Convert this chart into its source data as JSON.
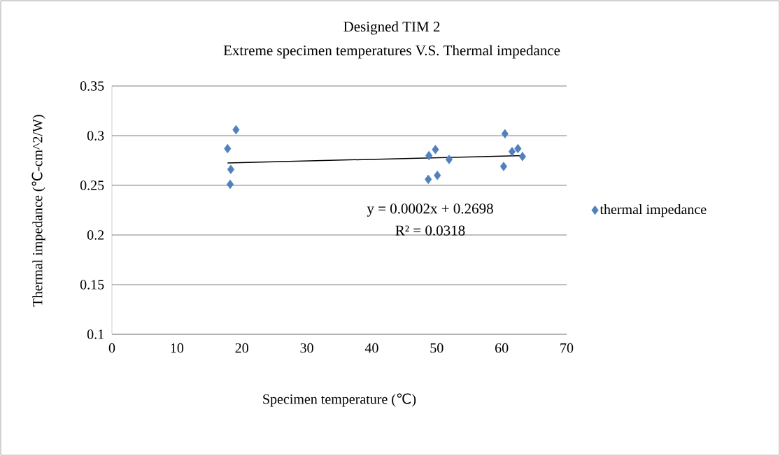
{
  "chart_data": {
    "type": "scatter",
    "title": "Designed TIM 2",
    "subtitle": "Extreme specimen temperatures V.S. Thermal impedance",
    "xlabel": "Specimen temperature (℃)",
    "ylabel": "Thermal impedance (℃-cm^2/W)",
    "xlim": [
      0,
      70
    ],
    "ylim": [
      0.1,
      0.35
    ],
    "xticks": [
      0,
      10,
      20,
      30,
      40,
      50,
      60,
      70
    ],
    "yticks": [
      0.1,
      0.15,
      0.2,
      0.25,
      0.3,
      0.35
    ],
    "grid": "y",
    "legend": "right",
    "series": [
      {
        "name": "thermal impedance",
        "color": "#4f81bd",
        "marker": "diamond",
        "x": [
          19.1,
          17.8,
          18.3,
          18.2,
          49.8,
          48.8,
          51.9,
          48.7,
          50.1,
          60.5,
          61.6,
          62.5,
          63.2,
          60.3
        ],
        "values": [
          0.306,
          0.287,
          0.266,
          0.251,
          0.286,
          0.28,
          0.276,
          0.256,
          0.26,
          0.302,
          0.284,
          0.287,
          0.279,
          0.269
        ]
      },
      {
        "type": "line",
        "color": "#000000",
        "marker": "none",
        "x": [
          17.8,
          63.2
        ],
        "values": [
          0.2725,
          0.28
        ]
      }
    ],
    "annotations": [
      "y = 0.0002x + 0.2698",
      "R² = 0.0318"
    ]
  }
}
